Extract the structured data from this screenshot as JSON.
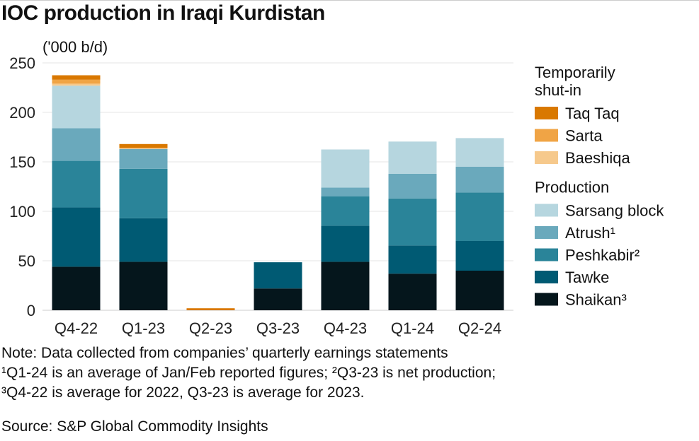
{
  "chart_data": {
    "type": "bar",
    "stacked": true,
    "title": "IOC production in Iraqi Kurdistan",
    "ylabel": "('000 b/d)",
    "ylim": [
      0,
      250
    ],
    "yticks": [
      0,
      50,
      100,
      150,
      200,
      250
    ],
    "grid": true,
    "legend_position": "right",
    "categories": [
      "Q4-22",
      "Q1-23",
      "Q2-23",
      "Q3-23",
      "Q4-23",
      "Q1-24",
      "Q2-24"
    ],
    "legend_groups": [
      {
        "title": "Temporarily shut-in",
        "series": [
          "Taq Taq",
          "Sarta",
          "Baeshiqa"
        ]
      },
      {
        "title": "Production",
        "series": [
          "Sarsang block",
          "Atrush¹",
          "Peshkabir²",
          "Tawke",
          "Shaikan³"
        ]
      }
    ],
    "series": [
      {
        "name": "Shaikan³",
        "color": "#05161C",
        "values": [
          44,
          49,
          0,
          22,
          49,
          37,
          40
        ]
      },
      {
        "name": "Tawke",
        "color": "#005A73",
        "values": [
          60,
          44,
          0,
          26.5,
          36.5,
          28.5,
          30
        ]
      },
      {
        "name": "Peshkabir²",
        "color": "#2A8499",
        "values": [
          47,
          50,
          0,
          0,
          29.5,
          47.5,
          49
        ]
      },
      {
        "name": "Atrush¹",
        "color": "#6AA9BC",
        "values": [
          33,
          20,
          0,
          0,
          9,
          25,
          26
        ]
      },
      {
        "name": "Sarsang block",
        "color": "#B6D6DF",
        "values": [
          43,
          0,
          0,
          0,
          38.5,
          32.5,
          29
        ]
      },
      {
        "name": "Baeshiqa",
        "color": "#F6C98C",
        "values": [
          2,
          1,
          0,
          0,
          0,
          0,
          0
        ]
      },
      {
        "name": "Sarta",
        "color": "#F0A445",
        "values": [
          4,
          0,
          0,
          0,
          0,
          0,
          0
        ]
      },
      {
        "name": "Taq Taq",
        "color": "#D97800",
        "values": [
          4.5,
          4,
          2,
          0,
          0,
          0,
          0
        ]
      }
    ]
  },
  "notes": [
    "Note: Data collected from companies’ quarterly earnings statements",
    "¹Q1-24 is an average of Jan/Feb reported figures; ²Q3-23 is net production;",
    "³Q4-22 is average for 2022, Q3-23 is average for 2023."
  ],
  "source": "Source: S&P Global Commodity Insights"
}
